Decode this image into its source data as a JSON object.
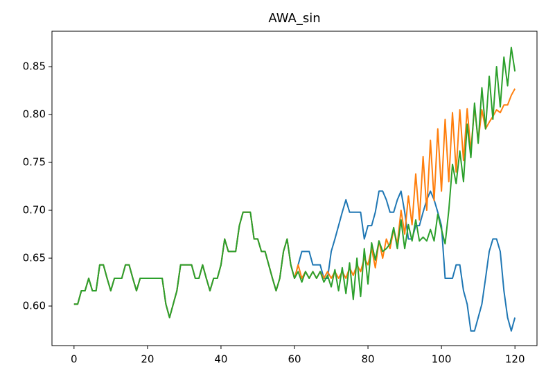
{
  "chart_data": {
    "type": "line",
    "title": "AWA_sin",
    "x": [
      0,
      1,
      2,
      3,
      4,
      5,
      6,
      7,
      8,
      9,
      10,
      11,
      12,
      13,
      14,
      15,
      16,
      17,
      18,
      19,
      20,
      21,
      22,
      23,
      24,
      25,
      26,
      27,
      28,
      29,
      30,
      31,
      32,
      33,
      34,
      35,
      36,
      37,
      38,
      39,
      40,
      41,
      42,
      43,
      44,
      45,
      46,
      47,
      48,
      49,
      50,
      51,
      52,
      53,
      54,
      55,
      56,
      57,
      58,
      59,
      60,
      61,
      62,
      63,
      64,
      65,
      66,
      67,
      68,
      69,
      70,
      71,
      72,
      73,
      74,
      75,
      76,
      77,
      78,
      79,
      80,
      81,
      82,
      83,
      84,
      85,
      86,
      87,
      88,
      89,
      90,
      91,
      92,
      93,
      94,
      95,
      96,
      97,
      98,
      99,
      100,
      101,
      102,
      103,
      104,
      105,
      106,
      107,
      108,
      109,
      110,
      111,
      112,
      113,
      114,
      115,
      116,
      117,
      118,
      119,
      120
    ],
    "series": [
      {
        "color": "#1f77b4",
        "values": [
          0.602,
          0.602,
          0.616,
          0.616,
          0.629,
          0.616,
          0.616,
          0.643,
          0.643,
          0.629,
          0.616,
          0.629,
          0.629,
          0.629,
          0.643,
          0.643,
          0.629,
          0.616,
          0.629,
          0.629,
          0.629,
          0.629,
          0.629,
          0.629,
          0.629,
          0.602,
          0.588,
          0.602,
          0.616,
          0.643,
          0.643,
          0.643,
          0.643,
          0.629,
          0.629,
          0.643,
          0.629,
          0.616,
          0.629,
          0.629,
          0.643,
          0.67,
          0.657,
          0.657,
          0.657,
          0.684,
          0.698,
          0.698,
          0.698,
          0.67,
          0.67,
          0.657,
          0.657,
          0.643,
          0.629,
          0.616,
          0.629,
          0.657,
          0.67,
          0.643,
          0.629,
          0.643,
          0.657,
          0.657,
          0.657,
          0.643,
          0.643,
          0.643,
          0.629,
          0.629,
          0.657,
          0.67,
          0.684,
          0.698,
          0.711,
          0.698,
          0.698,
          0.698,
          0.698,
          0.67,
          0.684,
          0.684,
          0.698,
          0.72,
          0.72,
          0.711,
          0.698,
          0.698,
          0.711,
          0.72,
          0.698,
          0.67,
          0.67,
          0.684,
          0.684,
          0.698,
          0.711,
          0.72,
          0.711,
          0.698,
          0.684,
          0.629,
          0.629,
          0.629,
          0.643,
          0.643,
          0.616,
          0.602,
          0.574,
          0.574,
          0.588,
          0.602,
          0.629,
          0.657,
          0.67,
          0.67,
          0.657,
          0.616,
          0.588,
          0.574,
          0.588
        ]
      },
      {
        "color": "#ff7f0e",
        "values": [
          0.602,
          0.602,
          0.616,
          0.616,
          0.629,
          0.616,
          0.616,
          0.643,
          0.643,
          0.629,
          0.616,
          0.629,
          0.629,
          0.629,
          0.643,
          0.643,
          0.629,
          0.616,
          0.629,
          0.629,
          0.629,
          0.629,
          0.629,
          0.629,
          0.629,
          0.602,
          0.588,
          0.602,
          0.616,
          0.643,
          0.643,
          0.643,
          0.643,
          0.629,
          0.629,
          0.643,
          0.629,
          0.616,
          0.629,
          0.629,
          0.643,
          0.67,
          0.657,
          0.657,
          0.657,
          0.684,
          0.698,
          0.698,
          0.698,
          0.67,
          0.67,
          0.657,
          0.657,
          0.643,
          0.629,
          0.616,
          0.629,
          0.657,
          0.67,
          0.643,
          0.629,
          0.643,
          0.629,
          0.636,
          0.629,
          0.636,
          0.629,
          0.636,
          0.629,
          0.636,
          0.629,
          0.636,
          0.629,
          0.636,
          0.629,
          0.64,
          0.632,
          0.643,
          0.636,
          0.65,
          0.643,
          0.66,
          0.64,
          0.668,
          0.65,
          0.67,
          0.66,
          0.68,
          0.665,
          0.7,
          0.675,
          0.715,
          0.685,
          0.738,
          0.69,
          0.756,
          0.7,
          0.773,
          0.71,
          0.785,
          0.72,
          0.795,
          0.73,
          0.802,
          0.74,
          0.805,
          0.752,
          0.806,
          0.762,
          0.808,
          0.772,
          0.805,
          0.785,
          0.792,
          0.798,
          0.805,
          0.802,
          0.81,
          0.81,
          0.82,
          0.827
        ]
      },
      {
        "color": "#2ca02c",
        "values": [
          0.602,
          0.602,
          0.616,
          0.616,
          0.629,
          0.616,
          0.616,
          0.643,
          0.643,
          0.629,
          0.616,
          0.629,
          0.629,
          0.629,
          0.643,
          0.643,
          0.629,
          0.616,
          0.629,
          0.629,
          0.629,
          0.629,
          0.629,
          0.629,
          0.629,
          0.602,
          0.588,
          0.602,
          0.616,
          0.643,
          0.643,
          0.643,
          0.643,
          0.629,
          0.629,
          0.643,
          0.629,
          0.616,
          0.629,
          0.629,
          0.643,
          0.67,
          0.657,
          0.657,
          0.657,
          0.684,
          0.698,
          0.698,
          0.698,
          0.67,
          0.67,
          0.657,
          0.657,
          0.643,
          0.629,
          0.616,
          0.629,
          0.657,
          0.67,
          0.643,
          0.629,
          0.636,
          0.625,
          0.636,
          0.629,
          0.636,
          0.629,
          0.636,
          0.625,
          0.632,
          0.62,
          0.638,
          0.616,
          0.64,
          0.613,
          0.645,
          0.607,
          0.65,
          0.61,
          0.66,
          0.623,
          0.666,
          0.648,
          0.668,
          0.657,
          0.66,
          0.665,
          0.682,
          0.66,
          0.69,
          0.66,
          0.685,
          0.668,
          0.69,
          0.668,
          0.672,
          0.668,
          0.68,
          0.668,
          0.696,
          0.68,
          0.665,
          0.7,
          0.748,
          0.728,
          0.762,
          0.73,
          0.79,
          0.755,
          0.812,
          0.77,
          0.828,
          0.785,
          0.84,
          0.795,
          0.85,
          0.808,
          0.86,
          0.83,
          0.87,
          0.845
        ]
      }
    ],
    "xlim": [
      -6,
      126
    ],
    "xticks": [
      0,
      20,
      40,
      60,
      80,
      100,
      120
    ],
    "ylim": [
      0.5587,
      0.887
    ],
    "yticks": [
      {
        "value": 0.6,
        "label": "0.60"
      },
      {
        "value": 0.65,
        "label": "0.65"
      },
      {
        "value": 0.7,
        "label": "0.70"
      },
      {
        "value": 0.75,
        "label": "0.75"
      },
      {
        "value": 0.8,
        "label": "0.80"
      },
      {
        "value": 0.85,
        "label": "0.85"
      }
    ],
    "grid": false
  }
}
